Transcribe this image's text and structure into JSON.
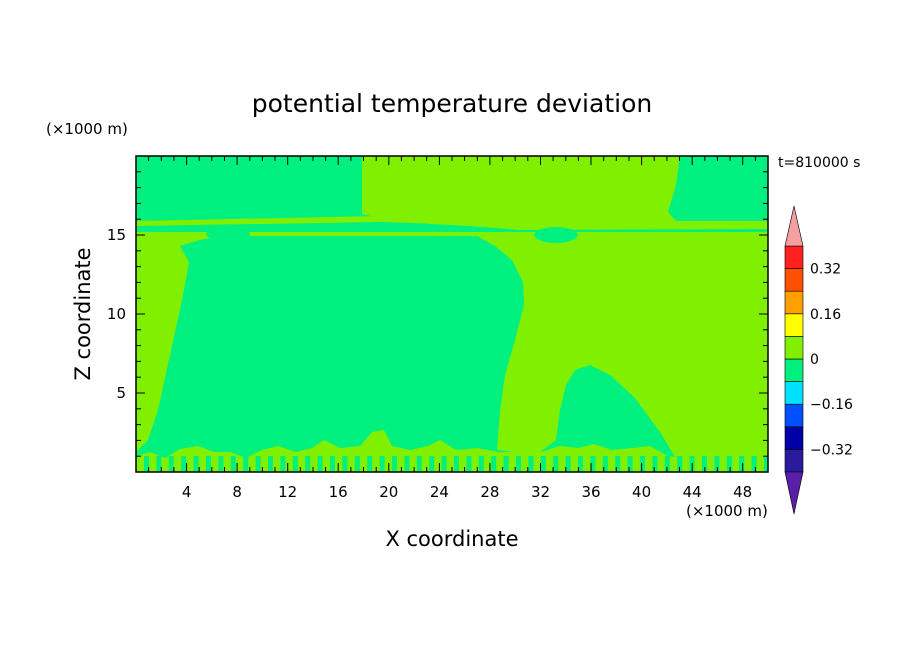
{
  "chart_data": {
    "type": "heatmap",
    "title": "potential temperature deviation",
    "xlabel": "X coordinate",
    "ylabel": "Z coordinate",
    "x_unit": "(×1000 m)",
    "y_unit": "(×1000 m)",
    "time_label": "t=810000 s",
    "xlim": [
      0,
      50
    ],
    "ylim": [
      0,
      20
    ],
    "x_ticks": [
      "4",
      "8",
      "12",
      "16",
      "20",
      "24",
      "28",
      "32",
      "36",
      "40",
      "44",
      "48"
    ],
    "y_ticks": [
      "5",
      "10",
      "15"
    ],
    "colorbar": {
      "labels": [
        "0.32",
        "0.16",
        "0",
        "−0.16",
        "−0.32"
      ],
      "label_values": [
        0.32,
        0.16,
        0,
        -0.16,
        -0.32
      ],
      "levels": [
        -0.4,
        -0.32,
        -0.24,
        -0.16,
        -0.08,
        0,
        0.08,
        0.16,
        0.24,
        0.32,
        0.4
      ],
      "colors": [
        "#5a1ea8",
        "#2a1a9c",
        "#0000a8",
        "#0050ff",
        "#00e0ff",
        "#00f080",
        "#80f000",
        "#ffff00",
        "#ffa000",
        "#ff5000",
        "#ff2020",
        "#f4a0a0"
      ],
      "extend": "both"
    },
    "fields": {
      "positive_class_color": "#80f000",
      "negative_class_color": "#00f080"
    },
    "grid": false
  }
}
